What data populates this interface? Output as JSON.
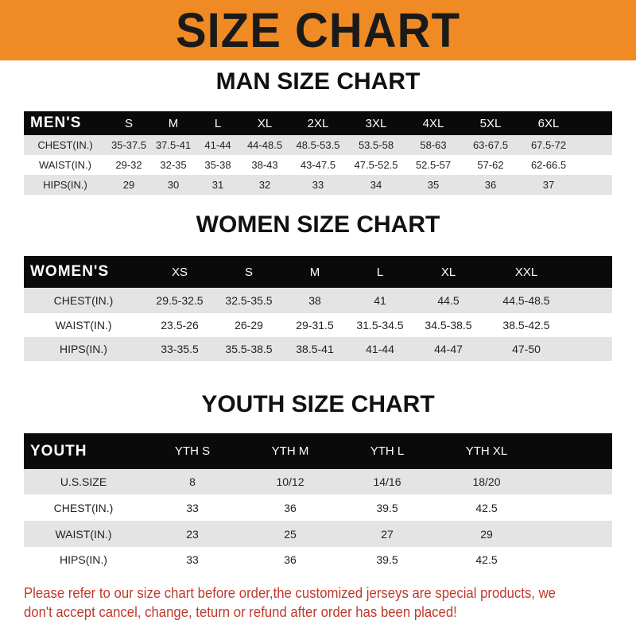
{
  "banner": "SIZE CHART",
  "men": {
    "title": "MAN SIZE CHART",
    "header": "MEN'S",
    "sizes": [
      "S",
      "M",
      "L",
      "XL",
      "2XL",
      "3XL",
      "4XL",
      "5XL",
      "6XL"
    ],
    "rows": [
      {
        "label": "CHEST(IN.)",
        "values": [
          "35-37.5",
          "37.5-41",
          "41-44",
          "44-48.5",
          "48.5-53.5",
          "53.5-58",
          "58-63",
          "63-67.5",
          "67.5-72"
        ]
      },
      {
        "label": "WAIST(IN.)",
        "values": [
          "29-32",
          "32-35",
          "35-38",
          "38-43",
          "43-47.5",
          "47.5-52.5",
          "52.5-57",
          "57-62",
          "62-66.5"
        ]
      },
      {
        "label": "HIPS(IN.)",
        "values": [
          "29",
          "30",
          "31",
          "32",
          "33",
          "34",
          "35",
          "36",
          "37"
        ]
      }
    ]
  },
  "women": {
    "title": "WOMEN SIZE CHART",
    "header": "WOMEN'S",
    "sizes": [
      "XS",
      "S",
      "M",
      "L",
      "XL",
      "XXL"
    ],
    "rows": [
      {
        "label": "CHEST(IN.)",
        "values": [
          "29.5-32.5",
          "32.5-35.5",
          "38",
          "41",
          "44.5",
          "44.5-48.5"
        ]
      },
      {
        "label": "WAIST(IN.)",
        "values": [
          "23.5-26",
          "26-29",
          "29-31.5",
          "31.5-34.5",
          "34.5-38.5",
          "38.5-42.5"
        ]
      },
      {
        "label": "HIPS(IN.)",
        "values": [
          "33-35.5",
          "35.5-38.5",
          "38.5-41",
          "41-44",
          "44-47",
          "47-50"
        ]
      }
    ]
  },
  "youth": {
    "title": "YOUTH SIZE CHART",
    "header": "YOUTH",
    "sizes": [
      "YTH S",
      "YTH M",
      "YTH L",
      "YTH XL"
    ],
    "rows": [
      {
        "label": "U.S.SIZE",
        "values": [
          "8",
          "10/12",
          "14/16",
          "18/20"
        ]
      },
      {
        "label": "CHEST(IN.)",
        "values": [
          "33",
          "36",
          "39.5",
          "42.5"
        ]
      },
      {
        "label": "WAIST(IN.)",
        "values": [
          "23",
          "25",
          "27",
          "29"
        ]
      },
      {
        "label": "HIPS(IN.)",
        "values": [
          "33",
          "36",
          "39.5",
          "42.5"
        ]
      }
    ]
  },
  "note": "Please refer to our size chart before order,the customized jerseys are special products, we don't accept cancel, change, teturn or refund after order has been placed!",
  "colors": {
    "banner": "#f08a24",
    "header": "#0a0a0a",
    "note": "#c0392b"
  }
}
